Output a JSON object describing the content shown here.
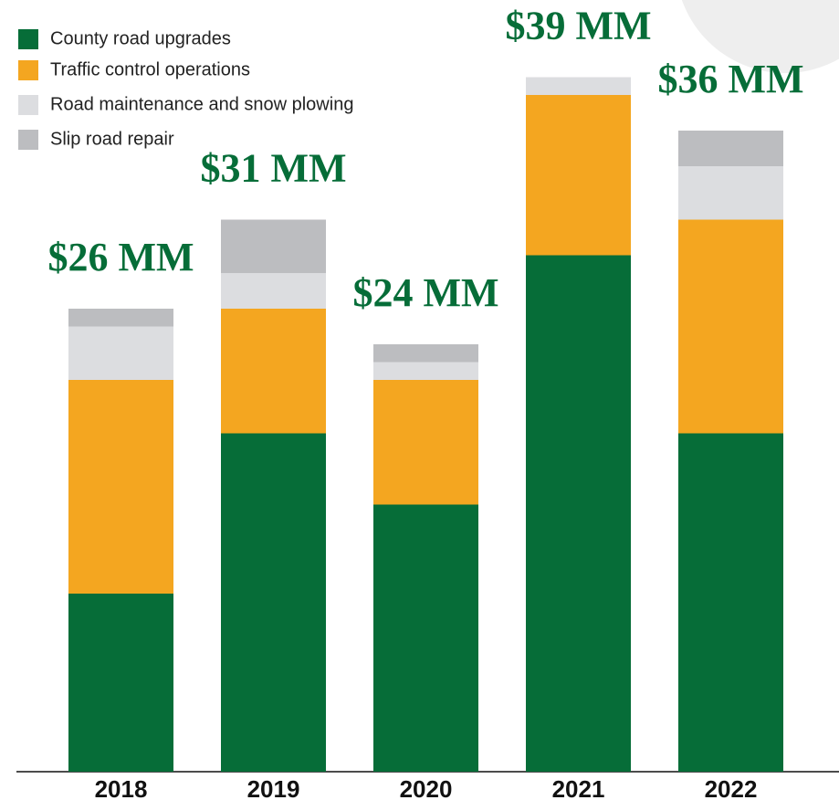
{
  "chart_data": {
    "type": "stacked_bar",
    "categories": [
      "2018",
      "2019",
      "2020",
      "2021",
      "2022"
    ],
    "series": [
      {
        "name": "County road upgrades",
        "color": "#066d38",
        "values": [
          10,
          19,
          15,
          29,
          19
        ]
      },
      {
        "name": "Traffic control operations",
        "color": "#f4a620",
        "values": [
          12,
          7,
          7,
          9,
          12
        ]
      },
      {
        "name": "Road maintenance and snow plowing",
        "color": "#dcdde0",
        "values": [
          3,
          2,
          1,
          1,
          3
        ]
      },
      {
        "name": "Slip road repair",
        "color": "#bcbdc0",
        "values": [
          1,
          3,
          1,
          0,
          2
        ]
      }
    ],
    "totals": [
      26,
      31,
      24,
      39,
      36
    ],
    "total_labels": [
      "$26 MM",
      "$31 MM",
      "$24 MM",
      "$39 MM",
      "$36 MM"
    ],
    "total_label_color": "#066d38",
    "ylim": [
      0,
      40
    ],
    "legend": "top-left"
  }
}
